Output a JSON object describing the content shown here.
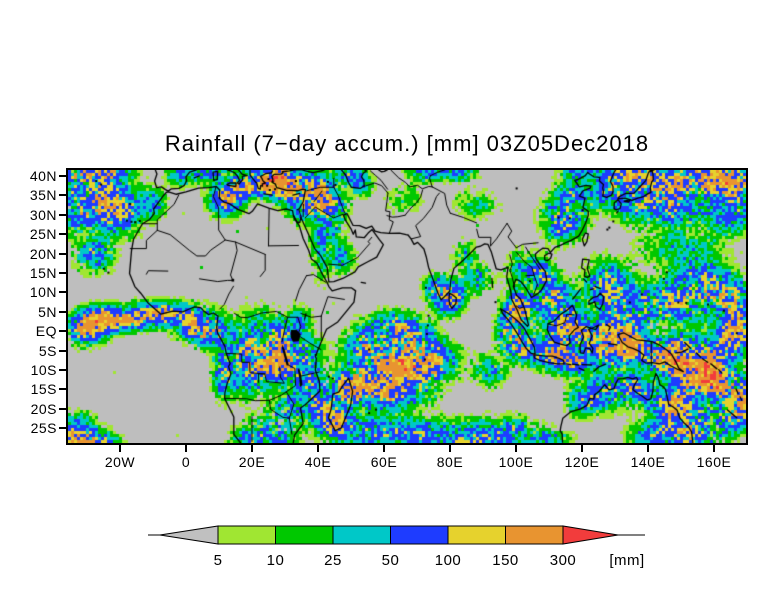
{
  "title": "Rainfall (7−day accum.) [mm] 03Z05Dec2018",
  "map": {
    "background_color": "#BEBEBE",
    "coastline_color": "#000000",
    "lat_ticks": [
      {
        "label": "40N",
        "lat": 40
      },
      {
        "label": "35N",
        "lat": 35
      },
      {
        "label": "30N",
        "lat": 30
      },
      {
        "label": "25N",
        "lat": 25
      },
      {
        "label": "20N",
        "lat": 20
      },
      {
        "label": "15N",
        "lat": 15
      },
      {
        "label": "10N",
        "lat": 10
      },
      {
        "label": "5N",
        "lat": 5
      },
      {
        "label": "EQ",
        "lat": 0
      },
      {
        "label": "5S",
        "lat": -5
      },
      {
        "label": "10S",
        "lat": -10
      },
      {
        "label": "15S",
        "lat": -15
      },
      {
        "label": "20S",
        "lat": -20
      },
      {
        "label": "25S",
        "lat": -25
      }
    ],
    "lon_ticks": [
      {
        "label": "20W",
        "lon": -20
      },
      {
        "label": "0",
        "lon": 0
      },
      {
        "label": "20E",
        "lon": 20
      },
      {
        "label": "40E",
        "lon": 40
      },
      {
        "label": "60E",
        "lon": 60
      },
      {
        "label": "80E",
        "lon": 80
      },
      {
        "label": "100E",
        "lon": 100
      },
      {
        "label": "120E",
        "lon": 120
      },
      {
        "label": "140E",
        "lon": 140
      },
      {
        "label": "160E",
        "lon": 160
      }
    ]
  },
  "colorbar": {
    "unit": "[mm]",
    "tick_labels": [
      "5",
      "10",
      "25",
      "50",
      "100",
      "150",
      "300"
    ],
    "thresholds_mm": [
      5,
      10,
      25,
      50,
      100,
      150,
      300
    ],
    "below_min_color": "#C0C0C0",
    "segment_colors": [
      "#A0E632",
      "#00C800",
      "#00C8C8",
      "#1E3CFF",
      "#E6D22D",
      "#E89430"
    ],
    "above_max_color": "#F23C3C"
  }
}
